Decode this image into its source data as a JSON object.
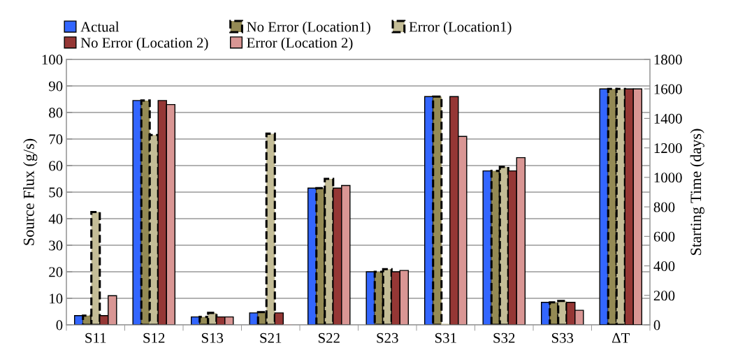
{
  "chart_data": {
    "type": "bar",
    "categories": [
      "S11",
      "S12",
      "S13",
      "S21",
      "S22",
      "S23",
      "S31",
      "S32",
      "S33",
      "ΔT"
    ],
    "ylabel": "Source Flux (g/s)",
    "y2label": "Starting Time (days)",
    "ylim": [
      0,
      100
    ],
    "yticks": [
      0,
      10,
      20,
      30,
      40,
      50,
      60,
      70,
      80,
      90,
      100
    ],
    "y2lim": [
      0,
      1800
    ],
    "y2ticks": [
      0,
      200,
      400,
      600,
      800,
      1000,
      1200,
      1400,
      1600,
      1800
    ],
    "grid": "y",
    "legend": "top",
    "series": [
      {
        "name": "Actual",
        "color": "#3366ff",
        "line_style": "solid",
        "values": [
          3.5,
          84.5,
          3,
          4.5,
          51.5,
          20,
          86,
          58,
          8.5,
          null
        ]
      },
      {
        "name": "No Error (Location1)",
        "color": "#948a54",
        "line_style": "dashed",
        "values": [
          3.5,
          84.5,
          3,
          4.8,
          51.5,
          20,
          86,
          58,
          8.5,
          null
        ]
      },
      {
        "name": "Error (Location1)",
        "color": "#c4bd97",
        "line_style": "dashed",
        "values": [
          42.5,
          71.5,
          4.5,
          72,
          55,
          21,
          0,
          59.5,
          9,
          null
        ]
      },
      {
        "name": "No Error (Location 2)",
        "color": "#953735",
        "line_style": "solid",
        "values": [
          3.5,
          84.5,
          3,
          4.5,
          51.5,
          20,
          86,
          58,
          8.5,
          null
        ]
      },
      {
        "name": "Error (Location 2)",
        "color": "#d99694",
        "line_style": "solid",
        "values": [
          11,
          83,
          3,
          0,
          52.5,
          20.5,
          71,
          63,
          5.5,
          null
        ]
      },
      {
        "axis": "y2",
        "color": "#3366ff",
        "line_style": "solid",
        "values": [
          null,
          null,
          null,
          null,
          null,
          null,
          null,
          null,
          null,
          1600
        ]
      },
      {
        "axis": "y2",
        "color": "#948a54",
        "line_style": "dashed",
        "values": [
          null,
          null,
          null,
          null,
          null,
          null,
          null,
          null,
          null,
          1600
        ]
      },
      {
        "axis": "y2",
        "color": "#c4bd97",
        "line_style": "dashed",
        "values": [
          null,
          null,
          null,
          null,
          null,
          null,
          null,
          null,
          null,
          1600
        ]
      },
      {
        "axis": "y2",
        "color": "#953735",
        "line_style": "solid",
        "values": [
          null,
          null,
          null,
          null,
          null,
          null,
          null,
          null,
          null,
          1600
        ]
      },
      {
        "axis": "y2",
        "color": "#d99694",
        "line_style": "solid",
        "values": [
          null,
          null,
          null,
          null,
          null,
          null,
          null,
          null,
          null,
          1600
        ]
      }
    ]
  }
}
